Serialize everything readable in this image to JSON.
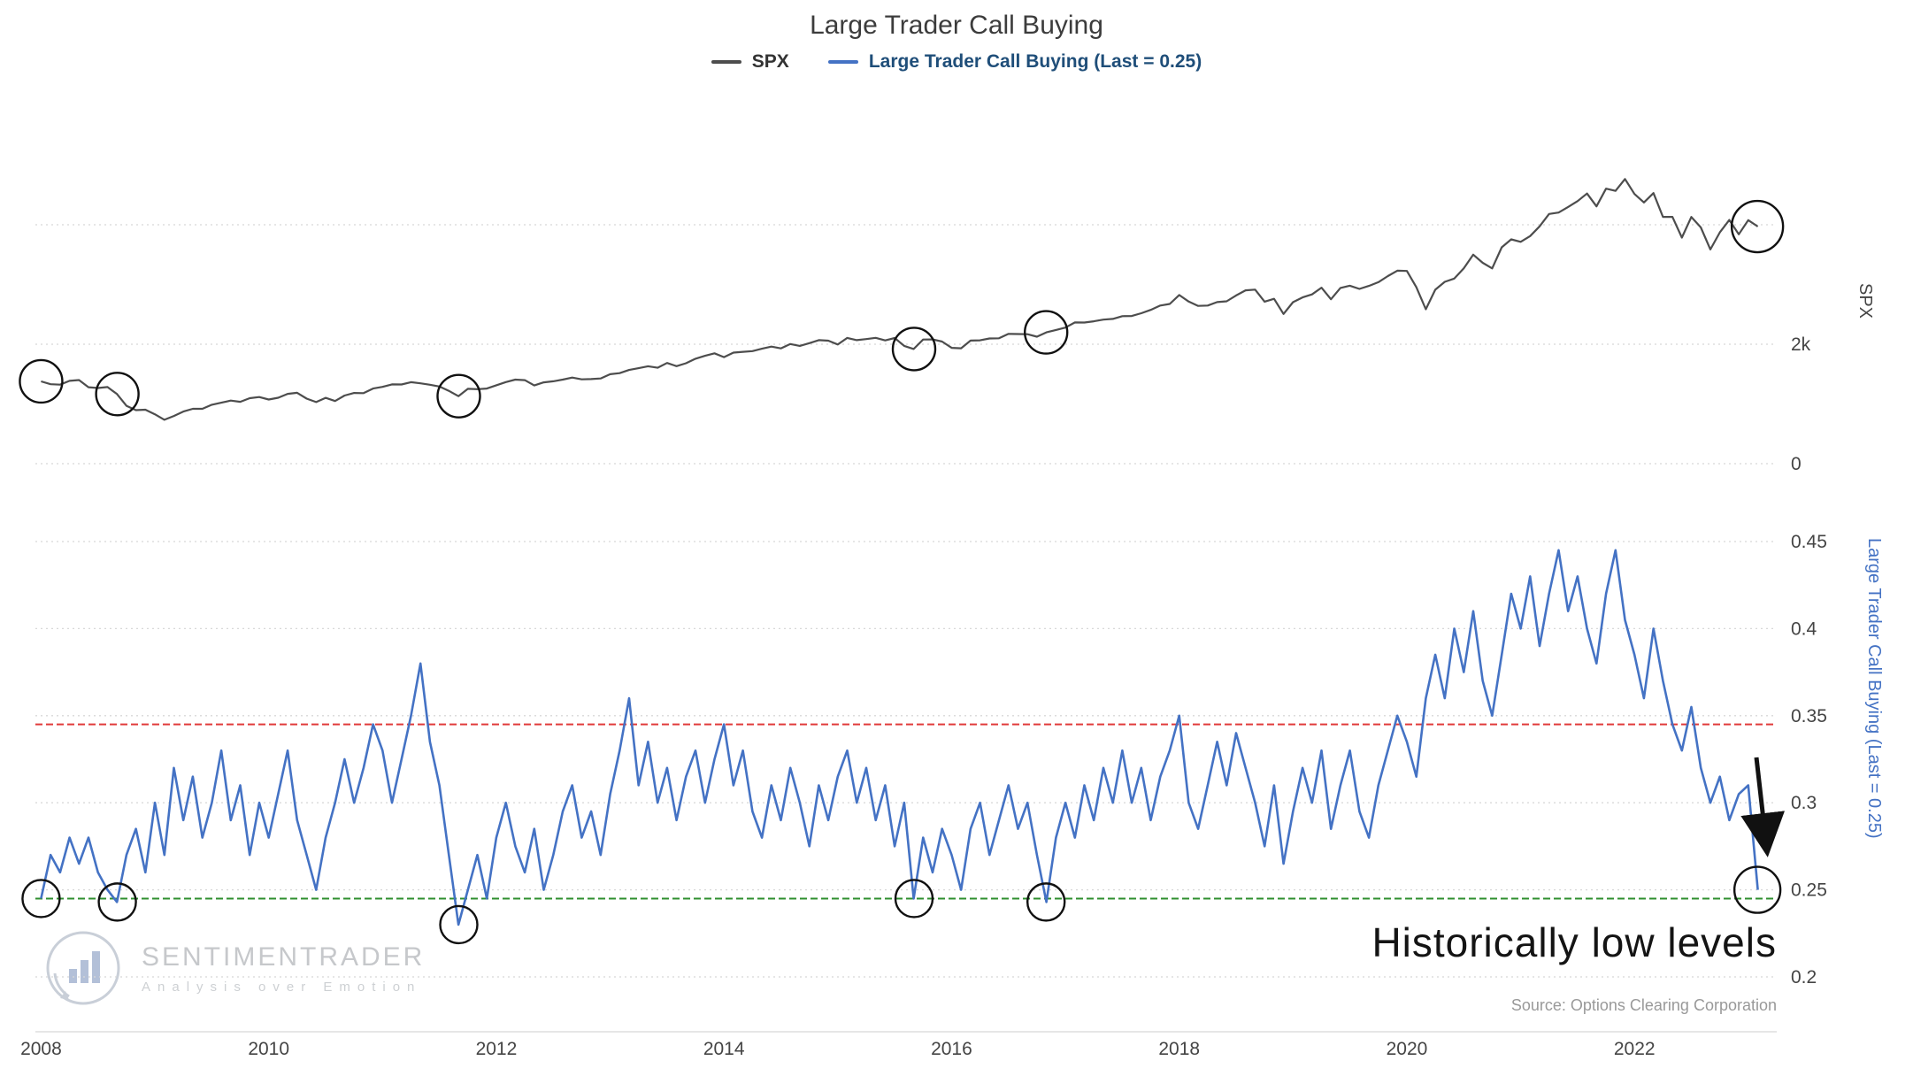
{
  "title": "Large Trader Call Buying",
  "legend": [
    {
      "label": "SPX",
      "color": "#4d4d4d"
    },
    {
      "label": "Large Trader Call Buying (Last = 0.25)",
      "color": "#4472c4"
    }
  ],
  "axes": {
    "spx_label": "SPX",
    "ratio_label": "Large Trader Call Buying (Last = 0.25)"
  },
  "annotation": {
    "text": "Historically low levels"
  },
  "source": "Source: Options Clearing Corporation",
  "watermark": {
    "name": "SENTIMENTRADER",
    "tagline": "Analysis over Emotion"
  },
  "colors": {
    "spx_line": "#4d4d4d",
    "ratio_line": "#4472c4",
    "threshold_high": "#e03a3a",
    "threshold_low": "#2f8f2f",
    "grid": "#d8d8d8",
    "axis_text": "#444444",
    "circle": "#111111",
    "legend_ratio_text": "#1f4e79"
  },
  "chart_data": {
    "type": "line",
    "title": "Large Trader Call Buying",
    "x_start_year": 2008,
    "x_points_per_year": 12,
    "xlim": [
      2007.95,
      2023.25
    ],
    "x_ticks": [
      2008,
      2010,
      2012,
      2014,
      2016,
      2018,
      2020,
      2022
    ],
    "panels": [
      {
        "name": "SPX",
        "ylim": [
          -500,
          5500
        ],
        "yticks": [
          {
            "value": 2000,
            "label": "2k"
          },
          {
            "value": 0,
            "label": "0"
          }
        ],
        "gridline_values": [
          0,
          2000,
          4000
        ],
        "series": {
          "name": "SPX",
          "color": "#4d4d4d",
          "values": [
            1378,
            1331,
            1323,
            1386,
            1400,
            1280,
            1267,
            1283,
            1166,
            969,
            896,
            903,
            826,
            735,
            798,
            873,
            919,
            919,
            987,
            1021,
            1057,
            1036,
            1096,
            1115,
            1074,
            1104,
            1169,
            1187,
            1089,
            1031,
            1102,
            1049,
            1141,
            1183,
            1181,
            1258,
            1286,
            1327,
            1326,
            1364,
            1345,
            1321,
            1292,
            1219,
            1131,
            1253,
            1247,
            1258,
            1312,
            1366,
            1408,
            1398,
            1310,
            1362,
            1379,
            1407,
            1441,
            1412,
            1416,
            1426,
            1498,
            1515,
            1569,
            1598,
            1631,
            1606,
            1686,
            1633,
            1682,
            1757,
            1806,
            1848,
            1783,
            1859,
            1872,
            1884,
            1924,
            1960,
            1931,
            2003,
            1972,
            2018,
            2068,
            2059,
            1995,
            2105,
            2068,
            2086,
            2107,
            2063,
            2104,
            1972,
            1920,
            2079,
            2080,
            2044,
            1940,
            1932,
            2060,
            2065,
            2097,
            2099,
            2174,
            2171,
            2168,
            2126,
            2199,
            2239,
            2279,
            2364,
            2363,
            2384,
            2412,
            2423,
            2470,
            2472,
            2519,
            2575,
            2648,
            2674,
            2824,
            2714,
            2641,
            2648,
            2705,
            2718,
            2816,
            2902,
            2914,
            2712,
            2760,
            2507,
            2704,
            2784,
            2834,
            2946,
            2752,
            2942,
            2980,
            2926,
            2977,
            3038,
            3141,
            3231,
            3226,
            2954,
            2585,
            2912,
            3044,
            3100,
            3271,
            3500,
            3363,
            3270,
            3622,
            3756,
            3714,
            3811,
            3973,
            4181,
            4204,
            4298,
            4395,
            4523,
            4308,
            4605,
            4567,
            4766,
            4516,
            4374,
            4530,
            4132,
            4132,
            3785,
            4130,
            3955,
            3586,
            3872,
            4080,
            3840,
            4077,
            3970
          ]
        }
      },
      {
        "name": "Large Trader Call Buying",
        "last_value": 0.25,
        "ylim": [
          0.18,
          0.47
        ],
        "yticks": [
          {
            "value": 0.45,
            "label": "0.45"
          },
          {
            "value": 0.4,
            "label": "0.4"
          },
          {
            "value": 0.35,
            "label": "0.35"
          },
          {
            "value": 0.3,
            "label": "0.3"
          },
          {
            "value": 0.25,
            "label": "0.25"
          },
          {
            "value": 0.2,
            "label": "0.2"
          }
        ],
        "gridline_values": [
          0.2,
          0.25,
          0.3,
          0.35,
          0.4,
          0.45
        ],
        "thresholds": [
          {
            "value": 0.345,
            "color": "#e03a3a"
          },
          {
            "value": 0.245,
            "color": "#2f8f2f"
          }
        ],
        "series": {
          "name": "Large Trader Call Buying",
          "color": "#4472c4",
          "values": [
            0.245,
            0.27,
            0.26,
            0.28,
            0.265,
            0.28,
            0.26,
            0.25,
            0.243,
            0.27,
            0.285,
            0.26,
            0.3,
            0.27,
            0.32,
            0.29,
            0.315,
            0.28,
            0.3,
            0.33,
            0.29,
            0.31,
            0.27,
            0.3,
            0.28,
            0.305,
            0.33,
            0.29,
            0.27,
            0.25,
            0.28,
            0.3,
            0.325,
            0.3,
            0.32,
            0.345,
            0.33,
            0.3,
            0.325,
            0.35,
            0.38,
            0.335,
            0.31,
            0.27,
            0.23,
            0.25,
            0.27,
            0.245,
            0.28,
            0.3,
            0.275,
            0.26,
            0.285,
            0.25,
            0.27,
            0.295,
            0.31,
            0.28,
            0.295,
            0.27,
            0.305,
            0.33,
            0.36,
            0.31,
            0.335,
            0.3,
            0.32,
            0.29,
            0.315,
            0.33,
            0.3,
            0.325,
            0.345,
            0.31,
            0.33,
            0.295,
            0.28,
            0.31,
            0.29,
            0.32,
            0.3,
            0.275,
            0.31,
            0.29,
            0.315,
            0.33,
            0.3,
            0.32,
            0.29,
            0.31,
            0.275,
            0.3,
            0.245,
            0.28,
            0.26,
            0.285,
            0.27,
            0.25,
            0.285,
            0.3,
            0.27,
            0.29,
            0.31,
            0.285,
            0.3,
            0.27,
            0.243,
            0.28,
            0.3,
            0.28,
            0.31,
            0.29,
            0.32,
            0.3,
            0.33,
            0.3,
            0.32,
            0.29,
            0.315,
            0.33,
            0.35,
            0.3,
            0.285,
            0.31,
            0.335,
            0.31,
            0.34,
            0.32,
            0.3,
            0.275,
            0.31,
            0.265,
            0.295,
            0.32,
            0.3,
            0.33,
            0.285,
            0.31,
            0.33,
            0.295,
            0.28,
            0.31,
            0.33,
            0.35,
            0.335,
            0.315,
            0.36,
            0.385,
            0.36,
            0.4,
            0.375,
            0.41,
            0.37,
            0.35,
            0.385,
            0.42,
            0.4,
            0.43,
            0.39,
            0.42,
            0.445,
            0.41,
            0.43,
            0.4,
            0.38,
            0.42,
            0.445,
            0.405,
            0.385,
            0.36,
            0.4,
            0.37,
            0.345,
            0.33,
            0.355,
            0.32,
            0.3,
            0.315,
            0.29,
            0.305,
            0.31,
            0.25
          ]
        }
      }
    ],
    "markers": {
      "years": [
        2008.0,
        2008.67,
        2011.67,
        2015.67,
        2016.83,
        2023.08
      ],
      "color": "#111111"
    }
  }
}
